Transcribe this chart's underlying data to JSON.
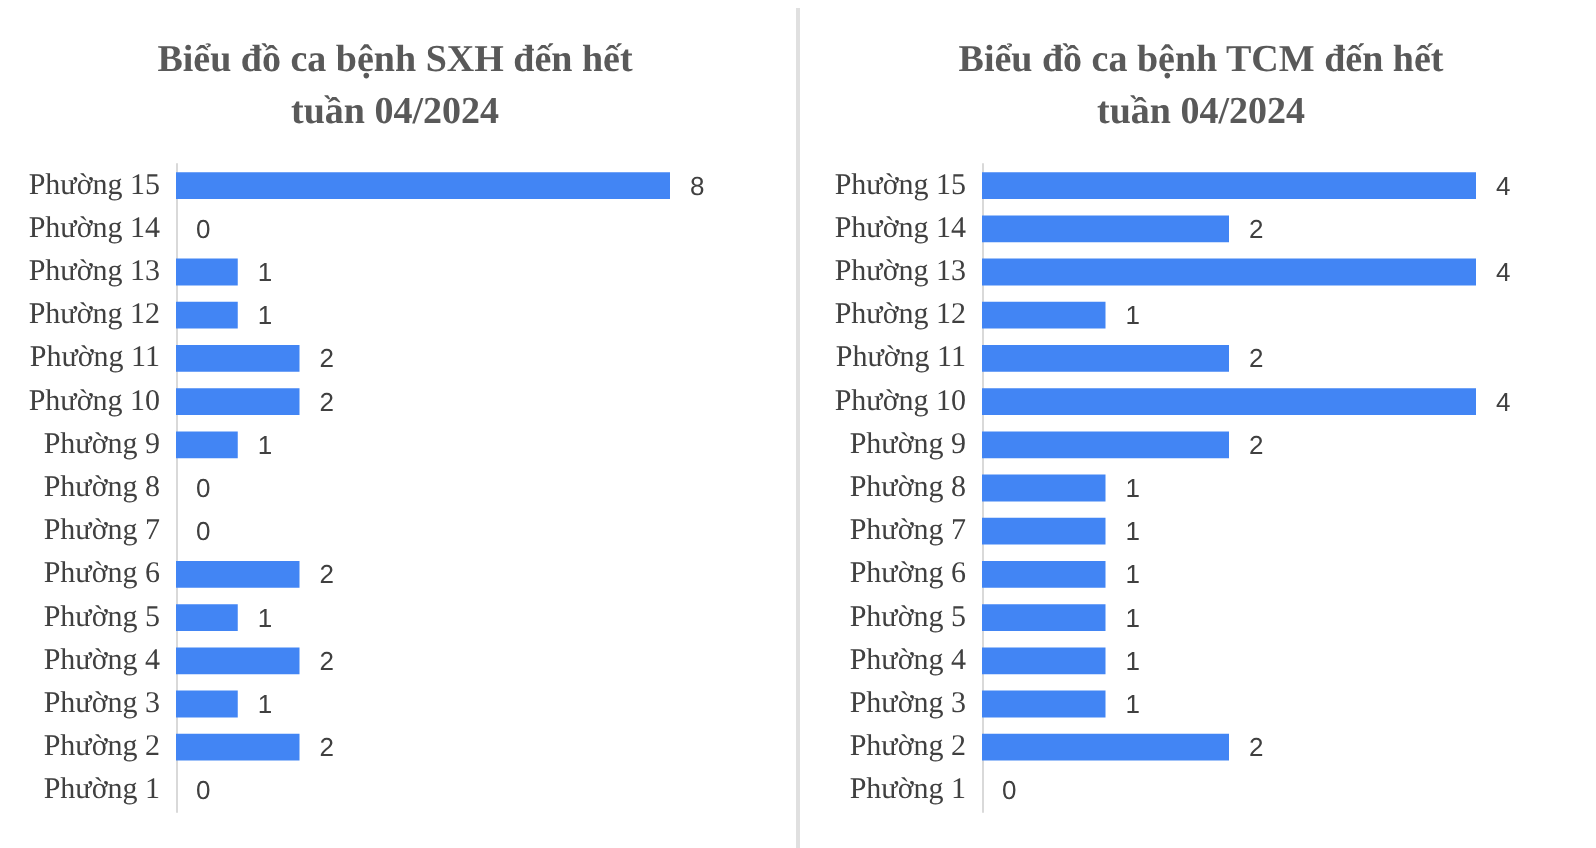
{
  "chart_data": [
    {
      "type": "bar",
      "orientation": "horizontal",
      "title": "Biểu đồ ca bệnh SXH đến hết\ntuần 04/2024",
      "categories": [
        "Phường 15",
        "Phường 14",
        "Phường 13",
        "Phường 12",
        "Phường 11",
        "Phường 10",
        "Phường 9",
        "Phường 8",
        "Phường 7",
        "Phường 6",
        "Phường 5",
        "Phường 4",
        "Phường 3",
        "Phường 2",
        "Phường 1"
      ],
      "values": [
        8,
        0,
        1,
        1,
        2,
        2,
        1,
        0,
        0,
        2,
        1,
        2,
        1,
        2,
        0
      ],
      "color": "#4285f4",
      "data_labels": true,
      "tick_labels": "y"
    },
    {
      "type": "bar",
      "orientation": "horizontal",
      "title": "Biểu đồ ca bệnh TCM đến hết\ntuần 04/2024",
      "categories": [
        "Phường 15",
        "Phường 14",
        "Phường 13",
        "Phường 12",
        "Phường 11",
        "Phường 10",
        "Phường 9",
        "Phường 8",
        "Phường 7",
        "Phường 6",
        "Phường 5",
        "Phường 4",
        "Phường 3",
        "Phường 2",
        "Phường 1"
      ],
      "values": [
        4,
        2,
        4,
        1,
        2,
        4,
        2,
        1,
        1,
        1,
        1,
        1,
        1,
        2,
        0
      ],
      "color": "#4285f4",
      "data_labels": true,
      "tick_labels": "y"
    }
  ]
}
